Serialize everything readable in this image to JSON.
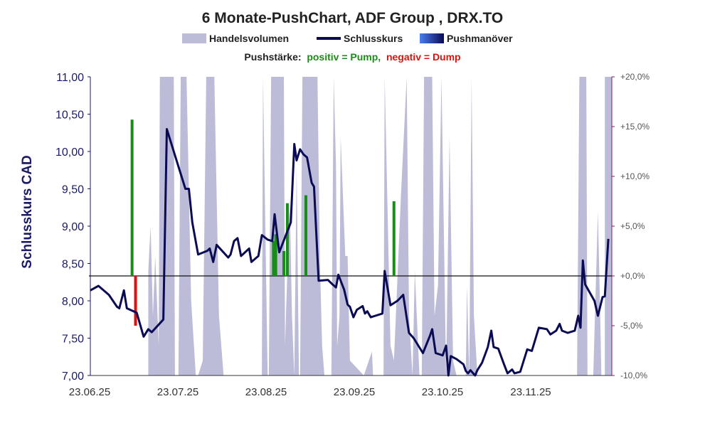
{
  "title": "6 Monate-PushChart, ADF Group , DRX.TO",
  "legend": {
    "volume": "Handelsvolumen",
    "close": "Schlusskurs",
    "push": "Pushmanöver"
  },
  "strength": {
    "label": "Pushstärke:",
    "positive": "positiv = Pump,",
    "negative": "negativ = Dump"
  },
  "colors": {
    "volume": "#bcbcd9",
    "close": "#0b0b55",
    "pump": "#1a8c1a",
    "dump": "#e01010",
    "axis_left": "#1a1a66",
    "axis_right": "#7a1f6e"
  },
  "chart_data": {
    "type": "line",
    "ylabel": "Schlusskurs CAD",
    "ylim": [
      7.0,
      11.0
    ],
    "y2lim": [
      -10,
      20
    ],
    "left_ticks": [
      "7,00",
      "7,50",
      "8,00",
      "8,50",
      "9,00",
      "9,50",
      "10,00",
      "10,50",
      "11,00"
    ],
    "right_ticks": [
      "-10,0%",
      "-5,0%",
      "+0,0%",
      "+5,0%",
      "+10,0%",
      "+15,0%",
      "+20,0%"
    ],
    "x_ticks": [
      "23.06.25",
      "23.07.25",
      "23.08.25",
      "23.09.25",
      "23.10.25",
      "23.11.25"
    ],
    "grid": false,
    "legend_position": "top",
    "series": [
      {
        "name": "Schlusskurs",
        "points": [
          [
            0.0,
            8.14
          ],
          [
            1.4,
            8.2
          ],
          [
            3.2,
            8.08
          ],
          [
            4.6,
            7.92
          ],
          [
            5.0,
            7.9
          ],
          [
            5.8,
            8.14
          ],
          [
            6.3,
            7.9
          ],
          [
            8.0,
            7.84
          ],
          [
            9.2,
            7.52
          ],
          [
            10.0,
            7.62
          ],
          [
            10.6,
            7.58
          ],
          [
            12.6,
            7.75
          ],
          [
            13.2,
            10.3
          ],
          [
            14.6,
            9.95
          ],
          [
            16.4,
            9.5
          ],
          [
            17.0,
            9.5
          ],
          [
            17.6,
            9.05
          ],
          [
            18.6,
            8.62
          ],
          [
            20.2,
            8.67
          ],
          [
            20.6,
            8.7
          ],
          [
            21.2,
            8.52
          ],
          [
            21.8,
            8.75
          ],
          [
            23.8,
            8.58
          ],
          [
            24.2,
            8.62
          ],
          [
            24.8,
            8.8
          ],
          [
            25.4,
            8.84
          ],
          [
            26.0,
            8.6
          ],
          [
            27.4,
            8.7
          ],
          [
            27.8,
            8.52
          ],
          [
            29.0,
            8.6
          ],
          [
            29.6,
            8.88
          ],
          [
            30.6,
            8.82
          ],
          [
            31.4,
            8.8
          ],
          [
            31.8,
            9.16
          ],
          [
            32.6,
            8.65
          ],
          [
            34.6,
            9.05
          ],
          [
            35.2,
            10.1
          ],
          [
            35.6,
            9.88
          ],
          [
            36.2,
            10.03
          ],
          [
            36.8,
            9.96
          ],
          [
            37.4,
            9.92
          ],
          [
            38.2,
            9.58
          ],
          [
            38.6,
            9.53
          ],
          [
            39.4,
            8.27
          ],
          [
            41.0,
            8.28
          ],
          [
            41.8,
            8.22
          ],
          [
            42.4,
            8.18
          ],
          [
            42.8,
            8.35
          ],
          [
            43.8,
            8.15
          ],
          [
            44.4,
            7.95
          ],
          [
            44.8,
            7.92
          ],
          [
            45.4,
            7.78
          ],
          [
            46.0,
            7.88
          ],
          [
            47.0,
            7.93
          ],
          [
            47.4,
            7.83
          ],
          [
            47.8,
            7.86
          ],
          [
            48.4,
            7.78
          ],
          [
            49.2,
            7.8
          ],
          [
            50.4,
            7.83
          ],
          [
            50.8,
            8.4
          ],
          [
            51.8,
            7.94
          ],
          [
            53.0,
            8.0
          ],
          [
            54.0,
            8.08
          ],
          [
            55.0,
            7.57
          ],
          [
            55.8,
            7.5
          ],
          [
            57.4,
            7.3
          ],
          [
            58.6,
            7.53
          ],
          [
            59.0,
            7.62
          ],
          [
            59.6,
            7.3
          ],
          [
            60.8,
            7.27
          ],
          [
            61.4,
            7.4
          ],
          [
            61.8,
            7.0
          ],
          [
            62.2,
            7.26
          ],
          [
            63.2,
            7.22
          ],
          [
            64.4,
            7.15
          ],
          [
            64.8,
            7.06
          ],
          [
            65.2,
            7.03
          ],
          [
            65.6,
            7.07
          ],
          [
            66.4,
            7.0
          ],
          [
            66.8,
            7.07
          ],
          [
            67.6,
            7.17
          ],
          [
            68.6,
            7.38
          ],
          [
            69.2,
            7.6
          ],
          [
            69.6,
            7.38
          ],
          [
            70.4,
            7.36
          ],
          [
            71.4,
            7.15
          ],
          [
            72.0,
            7.03
          ],
          [
            72.8,
            7.08
          ],
          [
            73.2,
            7.03
          ],
          [
            74.2,
            7.05
          ],
          [
            75.4,
            7.35
          ],
          [
            76.2,
            7.33
          ],
          [
            77.4,
            7.64
          ],
          [
            78.8,
            7.62
          ],
          [
            79.4,
            7.55
          ],
          [
            80.4,
            7.6
          ],
          [
            81.0,
            7.69
          ],
          [
            81.4,
            7.6
          ],
          [
            82.4,
            7.57
          ],
          [
            83.6,
            7.6
          ],
          [
            84.2,
            7.8
          ],
          [
            84.6,
            7.64
          ],
          [
            85.0,
            8.54
          ],
          [
            85.4,
            8.22
          ],
          [
            87.0,
            8.0
          ],
          [
            87.6,
            7.8
          ],
          [
            88.4,
            8.05
          ],
          [
            88.8,
            8.06
          ],
          [
            89.4,
            8.83
          ]
        ]
      }
    ],
    "pushes": [
      {
        "x": 7.2,
        "value": 15.7
      },
      {
        "x": 7.8,
        "value": -5.0
      },
      {
        "x": 31.6,
        "value": 3.5
      },
      {
        "x": 32.0,
        "value": 4.2
      },
      {
        "x": 33.4,
        "value": 2.5
      },
      {
        "x": 34.0,
        "value": 7.3
      },
      {
        "x": 37.2,
        "value": 8.1
      },
      {
        "x": 52.4,
        "value": 7.5
      }
    ],
    "volume": [
      [
        0,
        0
      ],
      [
        10.0,
        0
      ],
      [
        10.0,
        0.35
      ],
      [
        10.4,
        0.5
      ],
      [
        10.8,
        0.2
      ],
      [
        11.2,
        0.4
      ],
      [
        11.8,
        0.1
      ],
      [
        12.0,
        1.0
      ],
      [
        14.4,
        1.0
      ],
      [
        14.6,
        0
      ],
      [
        15.2,
        0
      ],
      [
        15.6,
        1.0
      ],
      [
        16.6,
        1.0
      ],
      [
        17.4,
        0.25
      ],
      [
        18.2,
        0
      ],
      [
        18.6,
        0
      ],
      [
        19.4,
        0.05
      ],
      [
        20.0,
        1.0
      ],
      [
        21.4,
        1.0
      ],
      [
        22.2,
        0.2
      ],
      [
        23.0,
        0
      ],
      [
        29.6,
        0
      ],
      [
        29.8,
        1.0
      ],
      [
        30.2,
        0.5
      ],
      [
        30.6,
        0
      ],
      [
        30.8,
        0
      ],
      [
        31.2,
        1.0
      ],
      [
        33.4,
        1.0
      ],
      [
        33.6,
        0.1
      ],
      [
        34.4,
        0.6
      ],
      [
        34.8,
        0.2
      ],
      [
        35.2,
        0
      ],
      [
        35.6,
        0.7
      ],
      [
        36.0,
        0
      ],
      [
        36.2,
        0
      ],
      [
        36.6,
        1.0
      ],
      [
        39.2,
        1.0
      ],
      [
        39.6,
        0.4
      ],
      [
        40.0,
        0.1
      ],
      [
        40.4,
        0
      ],
      [
        41.6,
        0
      ],
      [
        42.0,
        1.0
      ],
      [
        42.4,
        0.7
      ],
      [
        42.6,
        0.1
      ],
      [
        43.0,
        0.2
      ],
      [
        43.2,
        0.8
      ],
      [
        44.0,
        0.4
      ],
      [
        44.4,
        0.4
      ],
      [
        44.8,
        0.05
      ],
      [
        47.2,
        0
      ],
      [
        48.6,
        0.08
      ],
      [
        48.8,
        0
      ],
      [
        50.6,
        0
      ],
      [
        50.8,
        1.0
      ],
      [
        51.8,
        0.1
      ],
      [
        52.4,
        0.05
      ],
      [
        53.6,
        0.6
      ],
      [
        54.6,
        1.0
      ],
      [
        55.0,
        0.2
      ],
      [
        55.6,
        0
      ],
      [
        56.0,
        0.35
      ],
      [
        56.8,
        0
      ],
      [
        57.2,
        0
      ],
      [
        57.6,
        1.0
      ],
      [
        59.0,
        1.0
      ],
      [
        59.4,
        0.2
      ],
      [
        60.0,
        0.3
      ],
      [
        60.6,
        1.0
      ],
      [
        61.4,
        0
      ],
      [
        62.0,
        0.8
      ],
      [
        62.6,
        0.05
      ],
      [
        63.2,
        0
      ],
      [
        64.8,
        0
      ],
      [
        65.0,
        0.3
      ],
      [
        65.4,
        0
      ],
      [
        65.8,
        1.0
      ],
      [
        66.2,
        0.2
      ],
      [
        66.8,
        0
      ],
      [
        84.0,
        0
      ],
      [
        84.4,
        1.0
      ],
      [
        85.6,
        1.0
      ],
      [
        85.8,
        0
      ],
      [
        86.8,
        0
      ],
      [
        87.6,
        0.55
      ],
      [
        88.0,
        0.2
      ],
      [
        88.2,
        0
      ],
      [
        88.8,
        0
      ],
      [
        88.8,
        1.0
      ],
      [
        90.0,
        1.0
      ],
      [
        90.0,
        0
      ]
    ]
  }
}
